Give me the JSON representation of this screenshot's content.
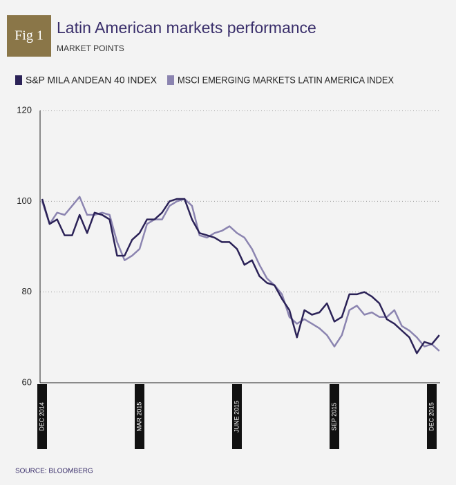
{
  "chart_data": {
    "type": "line",
    "figure_label": "Fig 1",
    "title": "Latin American markets performance",
    "subtitle": "MARKET POINTS",
    "source": "SOURCE: BLOOMBERG",
    "categories": [
      "DEC 2014",
      null,
      null,
      null,
      null,
      null,
      null,
      null,
      null,
      null,
      null,
      null,
      null,
      "MAR 2015",
      null,
      null,
      null,
      null,
      null,
      null,
      null,
      null,
      null,
      null,
      null,
      null,
      "JUNE 2015",
      null,
      null,
      null,
      null,
      null,
      null,
      null,
      null,
      null,
      null,
      null,
      null,
      "SEP 2015",
      null,
      null,
      null,
      null,
      null,
      null,
      null,
      null,
      null,
      null,
      null,
      null,
      "DEC 2015",
      null
    ],
    "series": [
      {
        "name": "S&P MILA ANDEAN 40 INDEX",
        "color": "#2b2257",
        "values": [
          100.5,
          95,
          96,
          92.5,
          92.5,
          97,
          93,
          97.5,
          97,
          96,
          88,
          88,
          91.5,
          93,
          96,
          96,
          97.5,
          100,
          100.5,
          100.5,
          96,
          93,
          92.5,
          92,
          91,
          91,
          89.5,
          86,
          87,
          83.5,
          82,
          81.5,
          78.5,
          76,
          70,
          76,
          75,
          75.5,
          77.5,
          73.5,
          74.5,
          79.5,
          79.5,
          80,
          79,
          77.5,
          74,
          73,
          71.5,
          70,
          66.5,
          69,
          68.5,
          70.5
        ]
      },
      {
        "name": "MSCI EMERGING MARKETS LATIN AMERICA INDEX",
        "color": "#8b84b0",
        "values": [
          100,
          95,
          97.5,
          97,
          99,
          101,
          97,
          97,
          97.5,
          97,
          91,
          87,
          88,
          89.5,
          95,
          96,
          96,
          99,
          100,
          100.5,
          99,
          92.5,
          92,
          93,
          93.5,
          94.5,
          93,
          92,
          89.5,
          86,
          83,
          81.5,
          79.5,
          74.5,
          73,
          74,
          73,
          72,
          70.5,
          68,
          70.5,
          76,
          77,
          75,
          75.5,
          74.5,
          74.5,
          76,
          72.5,
          71.5,
          70,
          68,
          68.5,
          67
        ]
      }
    ],
    "ylim": [
      60,
      120
    ],
    "yticks": [
      60,
      80,
      100,
      120
    ],
    "grid": true
  }
}
